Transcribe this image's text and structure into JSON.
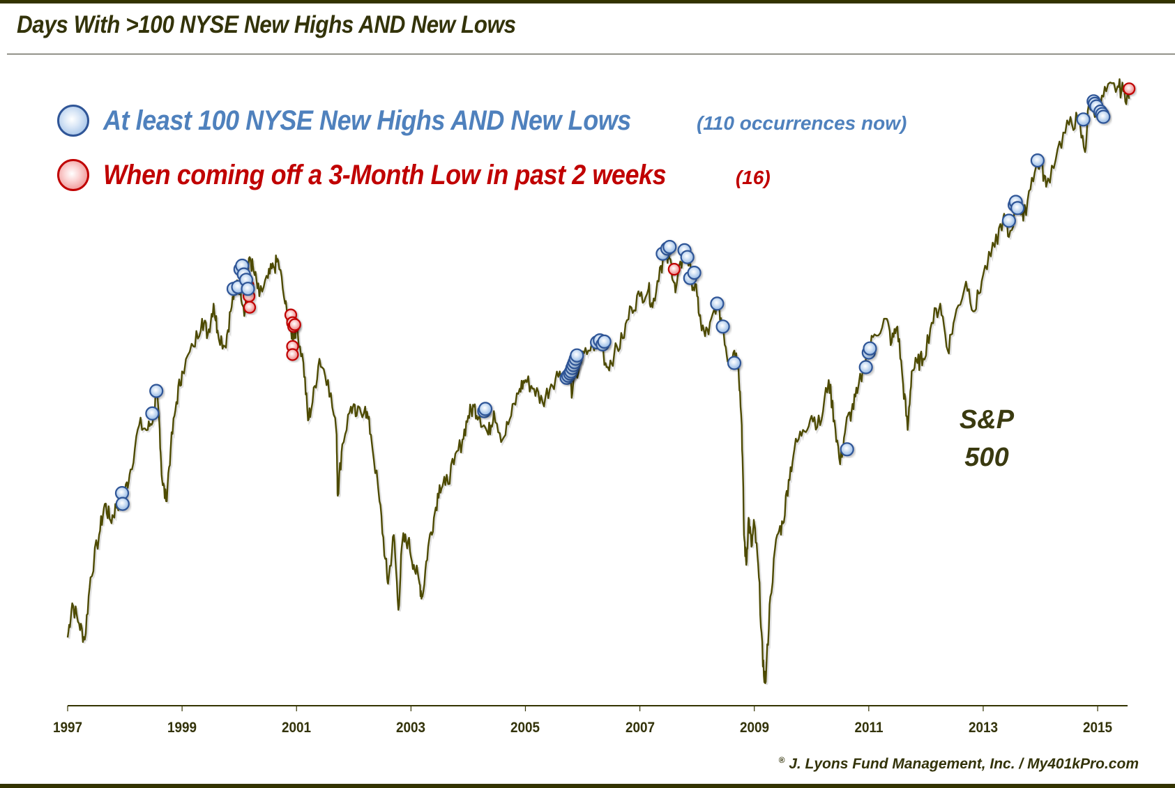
{
  "header": {
    "title": "Days With >100 NYSE New Highs AND New Lows"
  },
  "legend": [
    {
      "id": "blue",
      "label": "At least 100 NYSE New Highs AND New Lows",
      "note": "(110 occurrences now)",
      "color": "#4f81bd",
      "marker_border": "#2f5597"
    },
    {
      "id": "red",
      "label": "When coming off a 3-Month Low in past 2 weeks",
      "note": "(16)",
      "color": "#c00000",
      "marker_border": "#c00000"
    }
  ],
  "series_label": {
    "line1": "S&P",
    "line2": "500"
  },
  "footer": {
    "credit": "J. Lyons Fund Management, Inc. / My401kPro.com",
    "copyright_symbol": "®"
  },
  "colors": {
    "line": "#4d4a00",
    "axis": "#333300",
    "text": "#33330a"
  },
  "chart_data": {
    "type": "line",
    "title": "Days With >100 NYSE New Highs AND New Lows",
    "xlabel": "",
    "ylabel": "",
    "series_name": "S&P 500",
    "x_ticks": [
      "1997",
      "1999",
      "2001",
      "2003",
      "2005",
      "2007",
      "2009",
      "2011",
      "2013",
      "2015"
    ],
    "xlim": [
      1997,
      2015.6
    ],
    "y_scale": "log",
    "y_axis_visible": false,
    "grid": false,
    "legend_position": "top-left",
    "line_points": [
      [
        1997.0,
        740
      ],
      [
        1997.08,
        790
      ],
      [
        1997.2,
        760
      ],
      [
        1997.3,
        737
      ],
      [
        1997.4,
        830
      ],
      [
        1997.55,
        900
      ],
      [
        1997.65,
        955
      ],
      [
        1997.75,
        925
      ],
      [
        1997.85,
        950
      ],
      [
        1997.92,
        965
      ],
      [
        1998.0,
        975
      ],
      [
        1998.1,
        1020
      ],
      [
        1998.25,
        1110
      ],
      [
        1998.4,
        1100
      ],
      [
        1998.5,
        1130
      ],
      [
        1998.55,
        1180
      ],
      [
        1998.6,
        1120
      ],
      [
        1998.65,
        1000
      ],
      [
        1998.72,
        960
      ],
      [
        1998.8,
        1060
      ],
      [
        1998.9,
        1160
      ],
      [
        1999.0,
        1230
      ],
      [
        1999.2,
        1290
      ],
      [
        1999.35,
        1360
      ],
      [
        1999.45,
        1320
      ],
      [
        1999.55,
        1400
      ],
      [
        1999.62,
        1330
      ],
      [
        1999.75,
        1290
      ],
      [
        1999.85,
        1380
      ],
      [
        1999.95,
        1460
      ],
      [
        2000.02,
        1440
      ],
      [
        2000.1,
        1380
      ],
      [
        2000.18,
        1530
      ],
      [
        2000.25,
        1490
      ],
      [
        2000.35,
        1420
      ],
      [
        2000.5,
        1470
      ],
      [
        2000.6,
        1500
      ],
      [
        2000.68,
        1520
      ],
      [
        2000.8,
        1400
      ],
      [
        2000.88,
        1330
      ],
      [
        2000.95,
        1320
      ],
      [
        2001.0,
        1340
      ],
      [
        2001.12,
        1250
      ],
      [
        2001.2,
        1120
      ],
      [
        2001.28,
        1160
      ],
      [
        2001.4,
        1260
      ],
      [
        2001.55,
        1210
      ],
      [
        2001.7,
        1090
      ],
      [
        2001.72,
        970
      ],
      [
        2001.8,
        1070
      ],
      [
        2001.95,
        1150
      ],
      [
        2002.05,
        1130
      ],
      [
        2002.2,
        1150
      ],
      [
        2002.3,
        1090
      ],
      [
        2002.45,
        960
      ],
      [
        2002.55,
        860
      ],
      [
        2002.6,
        820
      ],
      [
        2002.7,
        900
      ],
      [
        2002.78,
        780
      ],
      [
        2002.85,
        890
      ],
      [
        2002.95,
        890
      ],
      [
        2003.05,
        850
      ],
      [
        2003.15,
        820
      ],
      [
        2003.2,
        800
      ],
      [
        2003.3,
        880
      ],
      [
        2003.4,
        930
      ],
      [
        2003.5,
        990
      ],
      [
        2003.6,
        990
      ],
      [
        2003.75,
        1030
      ],
      [
        2003.9,
        1080
      ],
      [
        2004.0,
        1130
      ],
      [
        2004.1,
        1150
      ],
      [
        2004.2,
        1130
      ],
      [
        2004.35,
        1090
      ],
      [
        2004.45,
        1140
      ],
      [
        2004.6,
        1080
      ],
      [
        2004.75,
        1130
      ],
      [
        2004.9,
        1190
      ],
      [
        2005.0,
        1210
      ],
      [
        2005.15,
        1190
      ],
      [
        2005.3,
        1160
      ],
      [
        2005.45,
        1200
      ],
      [
        2005.6,
        1230
      ],
      [
        2005.75,
        1220
      ],
      [
        2005.82,
        1180
      ],
      [
        2005.95,
        1250
      ],
      [
        2006.1,
        1280
      ],
      [
        2006.3,
        1310
      ],
      [
        2006.42,
        1240
      ],
      [
        2006.55,
        1270
      ],
      [
        2006.7,
        1310
      ],
      [
        2006.85,
        1390
      ],
      [
        2007.0,
        1420
      ],
      [
        2007.15,
        1440
      ],
      [
        2007.22,
        1390
      ],
      [
        2007.35,
        1500
      ],
      [
        2007.45,
        1530
      ],
      [
        2007.55,
        1510
      ],
      [
        2007.62,
        1430
      ],
      [
        2007.75,
        1530
      ],
      [
        2007.8,
        1560
      ],
      [
        2007.9,
        1470
      ],
      [
        2008.0,
        1420
      ],
      [
        2008.08,
        1330
      ],
      [
        2008.2,
        1320
      ],
      [
        2008.35,
        1410
      ],
      [
        2008.45,
        1340
      ],
      [
        2008.55,
        1250
      ],
      [
        2008.65,
        1280
      ],
      [
        2008.72,
        1250
      ],
      [
        2008.78,
        1110
      ],
      [
        2008.82,
        900
      ],
      [
        2008.86,
        850
      ],
      [
        2008.9,
        930
      ],
      [
        2008.95,
        880
      ],
      [
        2009.0,
        920
      ],
      [
        2009.08,
        830
      ],
      [
        2009.15,
        700
      ],
      [
        2009.2,
        680
      ],
      [
        2009.28,
        800
      ],
      [
        2009.4,
        900
      ],
      [
        2009.5,
        920
      ],
      [
        2009.6,
        1000
      ],
      [
        2009.7,
        1060
      ],
      [
        2009.85,
        1100
      ],
      [
        2010.0,
        1130
      ],
      [
        2010.15,
        1110
      ],
      [
        2010.3,
        1210
      ],
      [
        2010.4,
        1120
      ],
      [
        2010.5,
        1030
      ],
      [
        2010.6,
        1110
      ],
      [
        2010.7,
        1140
      ],
      [
        2010.8,
        1180
      ],
      [
        2010.95,
        1260
      ],
      [
        2011.1,
        1320
      ],
      [
        2011.3,
        1360
      ],
      [
        2011.4,
        1300
      ],
      [
        2011.5,
        1340
      ],
      [
        2011.6,
        1200
      ],
      [
        2011.68,
        1100
      ],
      [
        2011.75,
        1230
      ],
      [
        2011.85,
        1250
      ],
      [
        2011.95,
        1260
      ],
      [
        2012.1,
        1350
      ],
      [
        2012.25,
        1400
      ],
      [
        2012.38,
        1280
      ],
      [
        2012.5,
        1360
      ],
      [
        2012.7,
        1460
      ],
      [
        2012.85,
        1380
      ],
      [
        2013.0,
        1480
      ],
      [
        2013.2,
        1560
      ],
      [
        2013.35,
        1650
      ],
      [
        2013.45,
        1590
      ],
      [
        2013.6,
        1700
      ],
      [
        2013.7,
        1640
      ],
      [
        2013.85,
        1780
      ],
      [
        2014.0,
        1840
      ],
      [
        2014.1,
        1750
      ],
      [
        2014.3,
        1880
      ],
      [
        2014.5,
        1970
      ],
      [
        2014.65,
        1990
      ],
      [
        2014.78,
        1870
      ],
      [
        2014.85,
        2060
      ],
      [
        2015.0,
        2020
      ],
      [
        2015.15,
        2100
      ],
      [
        2015.35,
        2120
      ],
      [
        2015.45,
        2100
      ],
      [
        2015.55,
        2070
      ]
    ],
    "blue_markers": [
      [
        1997.95,
        975
      ],
      [
        1997.96,
        955
      ],
      [
        1998.48,
        1135
      ],
      [
        1998.55,
        1185
      ],
      [
        1999.9,
        1440
      ],
      [
        1999.98,
        1445
      ],
      [
        2000.02,
        1495
      ],
      [
        2000.05,
        1505
      ],
      [
        2000.08,
        1480
      ],
      [
        2000.12,
        1465
      ],
      [
        2000.15,
        1440
      ],
      [
        2004.28,
        1140
      ],
      [
        2004.3,
        1145
      ],
      [
        2005.72,
        1215
      ],
      [
        2005.75,
        1220
      ],
      [
        2005.78,
        1225
      ],
      [
        2005.8,
        1230
      ],
      [
        2005.82,
        1238
      ],
      [
        2005.84,
        1245
      ],
      [
        2005.86,
        1252
      ],
      [
        2005.88,
        1260
      ],
      [
        2005.9,
        1268
      ],
      [
        2006.25,
        1300
      ],
      [
        2006.3,
        1305
      ],
      [
        2006.35,
        1295
      ],
      [
        2006.38,
        1302
      ],
      [
        2007.4,
        1540
      ],
      [
        2007.48,
        1555
      ],
      [
        2007.52,
        1560
      ],
      [
        2007.78,
        1550
      ],
      [
        2007.83,
        1530
      ],
      [
        2007.88,
        1470
      ],
      [
        2007.95,
        1485
      ],
      [
        2008.35,
        1400
      ],
      [
        2008.45,
        1340
      ],
      [
        2008.65,
        1250
      ],
      [
        2010.62,
        1060
      ],
      [
        2010.95,
        1240
      ],
      [
        2011.0,
        1275
      ],
      [
        2011.02,
        1285
      ],
      [
        2013.45,
        1640
      ],
      [
        2013.55,
        1690
      ],
      [
        2013.57,
        1700
      ],
      [
        2013.6,
        1680
      ],
      [
        2013.95,
        1840
      ],
      [
        2014.75,
        1990
      ],
      [
        2014.93,
        2060
      ],
      [
        2014.95,
        2050
      ],
      [
        2014.98,
        2040
      ],
      [
        2015.05,
        2020
      ],
      [
        2015.08,
        2010
      ],
      [
        2015.1,
        2000
      ]
    ],
    "red_markers": [
      [
        2000.15,
        1450
      ],
      [
        2000.17,
        1420
      ],
      [
        2000.18,
        1390
      ],
      [
        2000.9,
        1370
      ],
      [
        2000.93,
        1350
      ],
      [
        2000.95,
        1340
      ],
      [
        2000.97,
        1345
      ],
      [
        2000.93,
        1290
      ],
      [
        2000.93,
        1270
      ],
      [
        2007.6,
        1495
      ],
      [
        2015.55,
        2110
      ]
    ]
  }
}
